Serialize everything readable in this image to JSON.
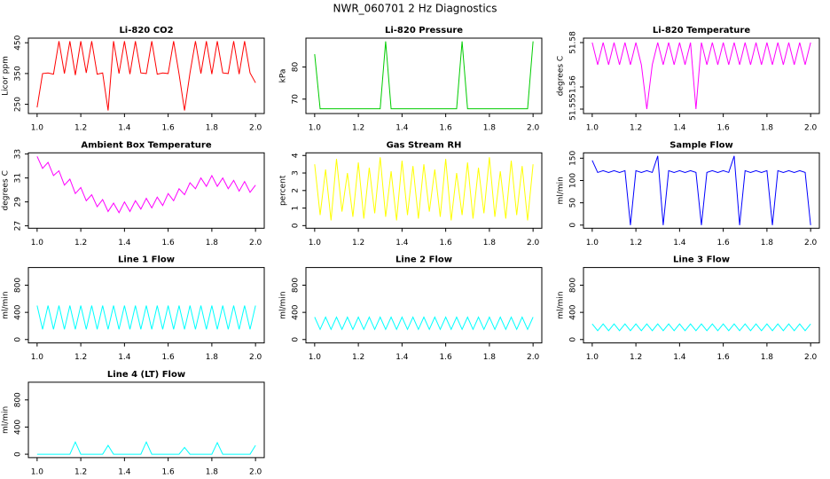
{
  "title": "NWR_060701 2 Hz Diagnostics",
  "chart_data": [
    {
      "type": "line",
      "title": "Li-820 CO2",
      "ylabel": "Licor ppm",
      "color": "#ff0000",
      "x": [
        1,
        1.025,
        1.05,
        1.075,
        1.1,
        1.125,
        1.15,
        1.175,
        1.2,
        1.225,
        1.25,
        1.275,
        1.3,
        1.325,
        1.35,
        1.375,
        1.4,
        1.425,
        1.45,
        1.475,
        1.5,
        1.525,
        1.55,
        1.575,
        1.6,
        1.625,
        1.65,
        1.675,
        1.7,
        1.725,
        1.75,
        1.775,
        1.8,
        1.825,
        1.85,
        1.875,
        1.9,
        1.925,
        1.95,
        1.975,
        2
      ],
      "values": [
        240,
        350,
        352,
        348,
        455,
        350,
        455,
        345,
        455,
        352,
        455,
        348,
        352,
        230,
        455,
        350,
        455,
        348,
        455,
        352,
        350,
        455,
        348,
        352,
        350,
        455,
        348,
        230,
        352,
        455,
        350,
        455,
        348,
        455,
        352,
        350,
        455,
        348,
        455,
        352,
        320
      ],
      "xlim": [
        0.96,
        2.04
      ],
      "xticks": [
        {
          "value": 1,
          "label": "1.0"
        },
        1.2,
        1.4,
        1.6,
        1.8,
        {
          "value": 2,
          "label": "2.0"
        }
      ],
      "ylim": [
        220,
        465
      ],
      "yticks": [
        250,
        350,
        450
      ]
    },
    {
      "type": "line",
      "title": "Li-820 Pressure",
      "ylabel": "kPa",
      "color": "#00cc00",
      "x": [
        1,
        1.025,
        1.05,
        1.075,
        1.1,
        1.125,
        1.15,
        1.175,
        1.2,
        1.225,
        1.25,
        1.275,
        1.3,
        1.325,
        1.35,
        1.375,
        1.4,
        1.425,
        1.45,
        1.475,
        1.5,
        1.525,
        1.55,
        1.575,
        1.6,
        1.625,
        1.65,
        1.675,
        1.7,
        1.725,
        1.75,
        1.775,
        1.8,
        1.825,
        1.85,
        1.875,
        1.9,
        1.925,
        1.95,
        1.975,
        2
      ],
      "values": [
        84,
        67,
        67,
        67,
        67,
        67,
        67,
        67,
        67,
        67,
        67,
        67,
        67,
        88,
        67,
        67,
        67,
        67,
        67,
        67,
        67,
        67,
        67,
        67,
        67,
        67,
        67,
        88,
        67,
        67,
        67,
        67,
        67,
        67,
        67,
        67,
        67,
        67,
        67,
        67,
        88
      ],
      "xlim": [
        0.96,
        2.04
      ],
      "xticks": [
        {
          "value": 1,
          "label": "1.0"
        },
        1.2,
        1.4,
        1.6,
        1.8,
        {
          "value": 2,
          "label": "2.0"
        }
      ],
      "ylim": [
        65.5,
        89
      ],
      "yticks": [
        70,
        80
      ]
    },
    {
      "type": "line",
      "title": "Li-820 Temperature",
      "ylabel": "degrees C",
      "color": "#ff00ff",
      "x": [
        1,
        1.025,
        1.05,
        1.075,
        1.1,
        1.125,
        1.15,
        1.175,
        1.2,
        1.225,
        1.25,
        1.275,
        1.3,
        1.325,
        1.35,
        1.375,
        1.4,
        1.425,
        1.45,
        1.475,
        1.5,
        1.525,
        1.55,
        1.575,
        1.6,
        1.625,
        1.65,
        1.675,
        1.7,
        1.725,
        1.75,
        1.775,
        1.8,
        1.825,
        1.85,
        1.875,
        1.9,
        1.925,
        1.95,
        1.975,
        2
      ],
      "values": [
        51.58,
        51.57,
        51.58,
        51.57,
        51.58,
        51.57,
        51.58,
        51.57,
        51.58,
        51.57,
        51.55,
        51.57,
        51.58,
        51.57,
        51.58,
        51.57,
        51.58,
        51.57,
        51.58,
        51.55,
        51.58,
        51.57,
        51.58,
        51.57,
        51.58,
        51.57,
        51.58,
        51.57,
        51.58,
        51.57,
        51.58,
        51.57,
        51.58,
        51.57,
        51.58,
        51.57,
        51.58,
        51.57,
        51.58,
        51.57,
        51.58
      ],
      "xlim": [
        0.96,
        2.04
      ],
      "xticks": [
        {
          "value": 1,
          "label": "1.0"
        },
        1.2,
        1.4,
        1.6,
        1.8,
        {
          "value": 2,
          "label": "2.0"
        }
      ],
      "ylim": [
        51.548,
        51.582
      ],
      "yticks": [
        51.55,
        51.56,
        51.58
      ]
    },
    {
      "type": "line",
      "title": "Ambient Box Temperature",
      "ylabel": "degrees C",
      "color": "#ff00ff",
      "x": [
        1,
        1.025,
        1.05,
        1.075,
        1.1,
        1.125,
        1.15,
        1.175,
        1.2,
        1.225,
        1.25,
        1.275,
        1.3,
        1.325,
        1.35,
        1.375,
        1.4,
        1.425,
        1.45,
        1.475,
        1.5,
        1.525,
        1.55,
        1.575,
        1.6,
        1.625,
        1.65,
        1.675,
        1.7,
        1.725,
        1.75,
        1.775,
        1.8,
        1.825,
        1.85,
        1.875,
        1.9,
        1.925,
        1.95,
        1.975,
        2
      ],
      "values": [
        32.8,
        31.8,
        32.3,
        31.2,
        31.6,
        30.4,
        30.9,
        29.7,
        30.2,
        29.1,
        29.6,
        28.6,
        29.2,
        28.2,
        28.9,
        28.1,
        29.0,
        28.2,
        29.1,
        28.4,
        29.3,
        28.5,
        29.4,
        28.7,
        29.7,
        29.1,
        30.1,
        29.6,
        30.6,
        30.1,
        31.0,
        30.3,
        31.2,
        30.3,
        31.0,
        30.1,
        30.8,
        29.9,
        30.7,
        29.8,
        30.4
      ],
      "xlim": [
        0.96,
        2.04
      ],
      "xticks": [
        {
          "value": 1,
          "label": "1.0"
        },
        1.2,
        1.4,
        1.6,
        1.8,
        {
          "value": 2,
          "label": "2.0"
        }
      ],
      "ylim": [
        26.8,
        33.1
      ],
      "yticks": [
        27,
        29,
        31,
        33
      ]
    },
    {
      "type": "line",
      "title": "Gas Stream RH",
      "ylabel": "percent",
      "color": "#ffff00",
      "x": [
        1,
        1.025,
        1.05,
        1.075,
        1.1,
        1.125,
        1.15,
        1.175,
        1.2,
        1.225,
        1.25,
        1.275,
        1.3,
        1.325,
        1.35,
        1.375,
        1.4,
        1.425,
        1.45,
        1.475,
        1.5,
        1.525,
        1.55,
        1.575,
        1.6,
        1.625,
        1.65,
        1.675,
        1.7,
        1.725,
        1.75,
        1.775,
        1.8,
        1.825,
        1.85,
        1.875,
        1.9,
        1.925,
        1.95,
        1.975,
        2
      ],
      "values": [
        3.5,
        0.6,
        3.2,
        0.3,
        3.8,
        0.8,
        3.0,
        0.5,
        3.6,
        0.4,
        3.3,
        0.7,
        3.9,
        0.5,
        3.1,
        0.3,
        3.7,
        0.6,
        3.4,
        0.4,
        3.5,
        0.8,
        3.2,
        0.5,
        3.8,
        0.3,
        3.0,
        0.6,
        3.6,
        0.4,
        3.3,
        0.7,
        3.9,
        0.5,
        3.1,
        0.4,
        3.7,
        0.6,
        3.4,
        0.3,
        3.5
      ],
      "xlim": [
        0.96,
        2.04
      ],
      "xticks": [
        {
          "value": 1,
          "label": "1.0"
        },
        1.2,
        1.4,
        1.6,
        1.8,
        {
          "value": 2,
          "label": "2.0"
        }
      ],
      "ylim": [
        -0.15,
        4.15
      ],
      "yticks": [
        0,
        1,
        2,
        3,
        4
      ]
    },
    {
      "type": "line",
      "title": "Sample Flow",
      "ylabel": "ml/min",
      "color": "#0000ff",
      "x": [
        1,
        1.025,
        1.05,
        1.075,
        1.1,
        1.125,
        1.15,
        1.175,
        1.2,
        1.225,
        1.25,
        1.275,
        1.3,
        1.325,
        1.35,
        1.375,
        1.4,
        1.425,
        1.45,
        1.475,
        1.5,
        1.525,
        1.55,
        1.575,
        1.6,
        1.625,
        1.65,
        1.675,
        1.7,
        1.725,
        1.75,
        1.775,
        1.8,
        1.825,
        1.85,
        1.875,
        1.9,
        1.925,
        1.95,
        1.975,
        2
      ],
      "values": [
        145,
        118,
        122,
        118,
        122,
        118,
        122,
        0,
        122,
        118,
        122,
        118,
        155,
        0,
        122,
        118,
        122,
        118,
        122,
        118,
        0,
        118,
        122,
        118,
        122,
        118,
        155,
        0,
        122,
        118,
        122,
        118,
        122,
        0,
        122,
        118,
        122,
        118,
        122,
        118,
        0
      ],
      "xlim": [
        0.96,
        2.04
      ],
      "xticks": [
        {
          "value": 1,
          "label": "1.0"
        },
        1.2,
        1.4,
        1.6,
        1.8,
        {
          "value": 2,
          "label": "2.0"
        }
      ],
      "ylim": [
        -7,
        162
      ],
      "yticks": [
        0,
        50,
        100,
        150
      ]
    },
    {
      "type": "line",
      "title": "Line 1 Flow",
      "ylabel": "ml/min",
      "color": "#00ffff",
      "x": [
        1,
        1.025,
        1.05,
        1.075,
        1.1,
        1.125,
        1.15,
        1.175,
        1.2,
        1.225,
        1.25,
        1.275,
        1.3,
        1.325,
        1.35,
        1.375,
        1.4,
        1.425,
        1.45,
        1.475,
        1.5,
        1.525,
        1.55,
        1.575,
        1.6,
        1.625,
        1.65,
        1.675,
        1.7,
        1.725,
        1.75,
        1.775,
        1.8,
        1.825,
        1.85,
        1.875,
        1.9,
        1.925,
        1.95,
        1.975,
        2
      ],
      "values": [
        500,
        150,
        500,
        150,
        500,
        150,
        500,
        150,
        500,
        150,
        500,
        150,
        500,
        150,
        500,
        150,
        500,
        150,
        500,
        150,
        500,
        150,
        500,
        150,
        500,
        150,
        500,
        150,
        500,
        150,
        500,
        150,
        500,
        150,
        500,
        150,
        500,
        150,
        500,
        150,
        500
      ],
      "xlim": [
        0.96,
        2.04
      ],
      "xticks": [
        {
          "value": 1,
          "label": "1.0"
        },
        1.2,
        1.4,
        1.6,
        1.8,
        {
          "value": 2,
          "label": "2.0"
        }
      ],
      "ylim": [
        -50,
        1060
      ],
      "yticks": [
        0,
        400,
        800
      ]
    },
    {
      "type": "line",
      "title": "Line 2 Flow",
      "ylabel": "ml/min",
      "color": "#00ffff",
      "x": [
        1,
        1.025,
        1.05,
        1.075,
        1.1,
        1.125,
        1.15,
        1.175,
        1.2,
        1.225,
        1.25,
        1.275,
        1.3,
        1.325,
        1.35,
        1.375,
        1.4,
        1.425,
        1.45,
        1.475,
        1.5,
        1.525,
        1.55,
        1.575,
        1.6,
        1.625,
        1.65,
        1.675,
        1.7,
        1.725,
        1.75,
        1.775,
        1.8,
        1.825,
        1.85,
        1.875,
        1.9,
        1.925,
        1.95,
        1.975,
        2
      ],
      "values": [
        330,
        150,
        330,
        150,
        330,
        150,
        330,
        150,
        330,
        150,
        330,
        150,
        330,
        150,
        330,
        150,
        330,
        150,
        330,
        150,
        330,
        150,
        330,
        150,
        330,
        150,
        330,
        150,
        330,
        150,
        330,
        150,
        330,
        150,
        330,
        150,
        330,
        150,
        330,
        150,
        330
      ],
      "xlim": [
        0.96,
        2.04
      ],
      "xticks": [
        {
          "value": 1,
          "label": "1.0"
        },
        1.2,
        1.4,
        1.6,
        1.8,
        {
          "value": 2,
          "label": "2.0"
        }
      ],
      "ylim": [
        -50,
        1060
      ],
      "yticks": [
        0,
        400,
        800
      ]
    },
    {
      "type": "line",
      "title": "Line 3 Flow",
      "ylabel": "ml/min",
      "color": "#00ffff",
      "x": [
        1,
        1.025,
        1.05,
        1.075,
        1.1,
        1.125,
        1.15,
        1.175,
        1.2,
        1.225,
        1.25,
        1.275,
        1.3,
        1.325,
        1.35,
        1.375,
        1.4,
        1.425,
        1.45,
        1.475,
        1.5,
        1.525,
        1.55,
        1.575,
        1.6,
        1.625,
        1.65,
        1.675,
        1.7,
        1.725,
        1.75,
        1.775,
        1.8,
        1.825,
        1.85,
        1.875,
        1.9,
        1.925,
        1.95,
        1.975,
        2
      ],
      "values": [
        230,
        130,
        230,
        130,
        230,
        130,
        230,
        130,
        230,
        130,
        230,
        130,
        230,
        130,
        230,
        130,
        230,
        130,
        230,
        130,
        230,
        130,
        230,
        130,
        230,
        130,
        230,
        130,
        230,
        130,
        230,
        130,
        230,
        130,
        230,
        130,
        230,
        130,
        230,
        130,
        230
      ],
      "xlim": [
        0.96,
        2.04
      ],
      "xticks": [
        {
          "value": 1,
          "label": "1.0"
        },
        1.2,
        1.4,
        1.6,
        1.8,
        {
          "value": 2,
          "label": "2.0"
        }
      ],
      "ylim": [
        -50,
        1060
      ],
      "yticks": [
        0,
        400,
        800
      ]
    },
    {
      "type": "line",
      "title": "Line 4 (LT) Flow",
      "ylabel": "ml/min",
      "color": "#00ffff",
      "x": [
        1,
        1.025,
        1.05,
        1.075,
        1.1,
        1.125,
        1.15,
        1.175,
        1.2,
        1.225,
        1.25,
        1.275,
        1.3,
        1.325,
        1.35,
        1.375,
        1.4,
        1.425,
        1.45,
        1.475,
        1.5,
        1.525,
        1.55,
        1.575,
        1.6,
        1.625,
        1.65,
        1.675,
        1.7,
        1.725,
        1.75,
        1.775,
        1.8,
        1.825,
        1.85,
        1.875,
        1.9,
        1.925,
        1.95,
        1.975,
        2
      ],
      "values": [
        0,
        0,
        0,
        0,
        0,
        0,
        0,
        180,
        0,
        0,
        0,
        0,
        0,
        130,
        0,
        0,
        0,
        0,
        0,
        0,
        180,
        0,
        0,
        0,
        0,
        0,
        0,
        100,
        0,
        0,
        0,
        0,
        0,
        170,
        0,
        0,
        0,
        0,
        0,
        0,
        130
      ],
      "xlim": [
        0.96,
        2.04
      ],
      "xticks": [
        {
          "value": 1,
          "label": "1.0"
        },
        1.2,
        1.4,
        1.6,
        1.8,
        {
          "value": 2,
          "label": "2.0"
        }
      ],
      "ylim": [
        -50,
        1060
      ],
      "yticks": [
        0,
        400,
        800
      ]
    }
  ]
}
